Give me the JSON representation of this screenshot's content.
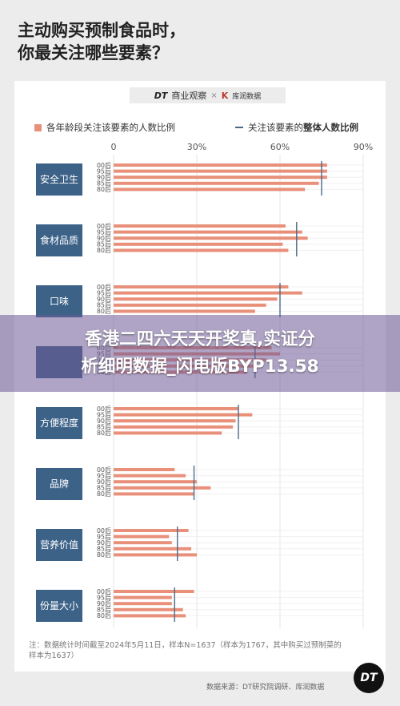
{
  "headline": {
    "line1": "主动购买预制食品时，",
    "line2": "你最关注哪些要素？"
  },
  "brand": {
    "dt_mark": "DT",
    "dt_name": "商业观察",
    "separator": "×",
    "partner_icon": "K",
    "partner_name": "库润数据"
  },
  "legend": {
    "bar_label": "各年龄段关注该要素的人数比例",
    "line_prefix": "关注该要素的",
    "line_bold": "整体人数比例"
  },
  "chart_data": {
    "type": "bar",
    "orientation": "horizontal",
    "axis_ticks": [
      "0",
      "30%",
      "60%",
      "90%"
    ],
    "xlim": [
      0,
      90
    ],
    "grid": true,
    "colors": {
      "bar": "#e8907a",
      "overall_line": "#4b6a87",
      "category_box": "#3d6288"
    },
    "age_groups": [
      "00后",
      "95后",
      "90后",
      "85后",
      "80后"
    ],
    "groups": [
      {
        "category": "安全卫生",
        "values": [
          77,
          77,
          77,
          74,
          69
        ],
        "overall": 75
      },
      {
        "category": "食材品质",
        "values": [
          62,
          68,
          70,
          61,
          63
        ],
        "overall": 66
      },
      {
        "category": "口味",
        "values": [
          63,
          68,
          59,
          55,
          51
        ],
        "overall": 60
      },
      {
        "category": "",
        "values": [
          57,
          60,
          55,
          52,
          48
        ],
        "overall": 51
      },
      {
        "category": "方便程度",
        "values": [
          45,
          50,
          44,
          43,
          39
        ],
        "overall": 45
      },
      {
        "category": "品牌",
        "values": [
          22,
          26,
          30,
          35,
          29
        ],
        "overall": 29
      },
      {
        "category": "营养价值",
        "values": [
          27,
          20,
          21,
          28,
          30
        ],
        "overall": 23
      },
      {
        "category": "份量大小",
        "values": [
          29,
          21,
          21,
          25,
          26
        ],
        "overall": 22
      }
    ]
  },
  "note": {
    "line1": "注：数据统计时间截至2024年5月11日，样本N=1637（样本为1767，其中购买过预制菜的",
    "line2": "样本为1637）"
  },
  "source": "数据来源：DT研究院调研、库润数据",
  "logo_text": "DT",
  "overlay": {
    "line1": "香港二四六天天开奖真,实证分",
    "line2": "析细明数据_闪电版BYP13.58"
  }
}
